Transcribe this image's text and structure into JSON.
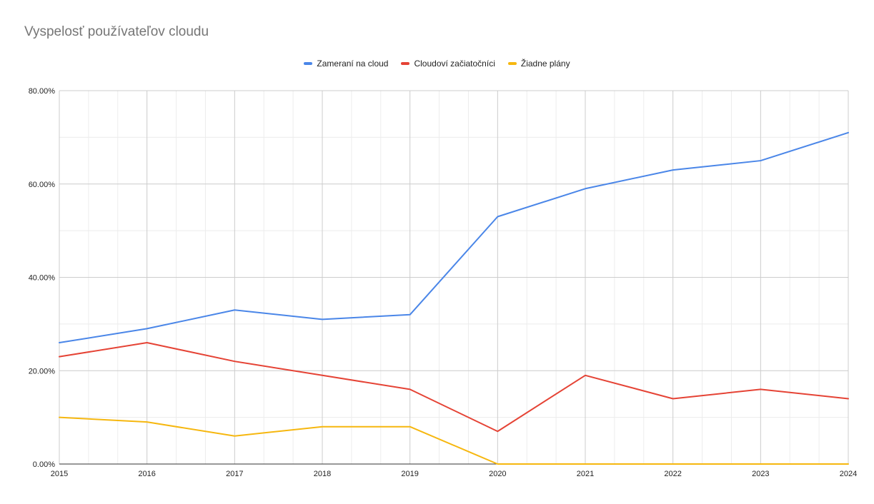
{
  "title": "Vyspelosť používateľov cloudu",
  "chart_data": {
    "type": "line",
    "title": "Vyspelosť používateľov cloudu",
    "x": [
      "2015",
      "2016",
      "2017",
      "2018",
      "2019",
      "2020",
      "2021",
      "2022",
      "2023",
      "2024"
    ],
    "series": [
      {
        "name": "Zameraní na cloud",
        "color": "#4a86e8",
        "values": [
          26,
          29,
          33,
          31,
          32,
          53,
          59,
          63,
          65,
          71
        ]
      },
      {
        "name": "Cloudoví začiatočníci",
        "color": "#e54335",
        "values": [
          23,
          26,
          22,
          19,
          16,
          7,
          19,
          14,
          16,
          14
        ]
      },
      {
        "name": "Žiadne plány",
        "color": "#f6b70f",
        "values": [
          10,
          9,
          6,
          8,
          8,
          0,
          0,
          0,
          0,
          0
        ]
      }
    ],
    "y_ticks": [
      "0.00%",
      "20.00%",
      "40.00%",
      "60.00%",
      "80.00%"
    ],
    "ylim": [
      0,
      80
    ],
    "xlabel": "",
    "ylabel": "",
    "grid": true,
    "legend_position": "top"
  }
}
